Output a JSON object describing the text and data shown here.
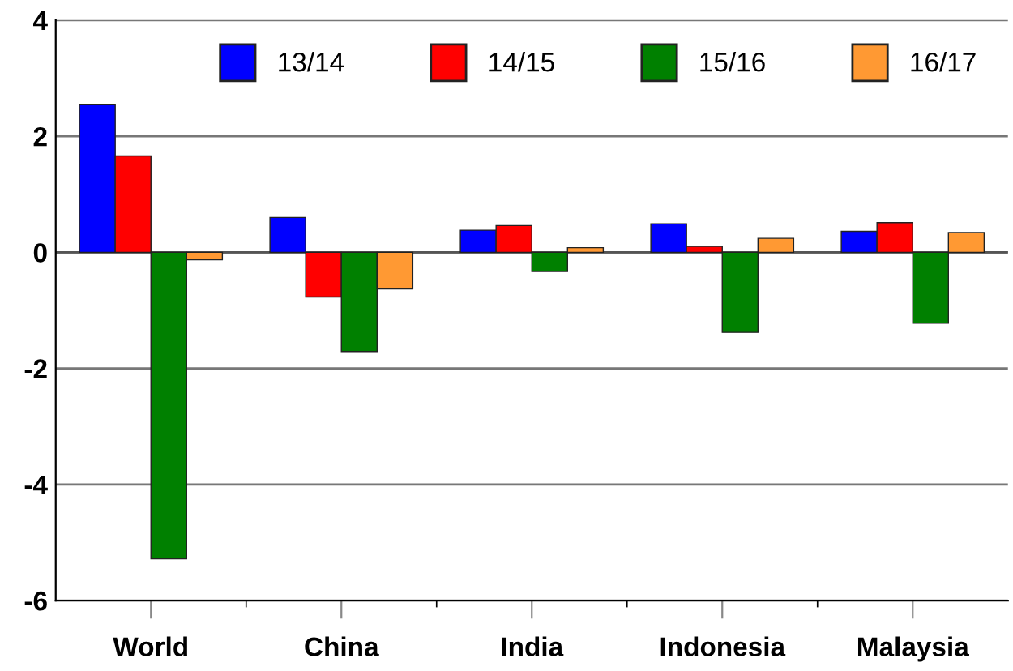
{
  "chart_data": {
    "type": "bar",
    "categories": [
      "World",
      "China",
      "India",
      "Indonesia",
      "Malaysia"
    ],
    "series": [
      {
        "name": "13/14",
        "color": "#0000ff",
        "values": [
          2.55,
          0.6,
          0.38,
          0.49,
          0.36
        ]
      },
      {
        "name": "14/15",
        "color": "#ff0000",
        "values": [
          1.66,
          -0.77,
          0.46,
          0.1,
          0.51
        ]
      },
      {
        "name": "15/16",
        "color": "#008000",
        "values": [
          -5.28,
          -1.71,
          -0.33,
          -1.38,
          -1.22
        ]
      },
      {
        "name": "16/17",
        "color": "#ff9933",
        "values": [
          -0.13,
          -0.63,
          0.08,
          0.24,
          0.34
        ]
      }
    ],
    "ylim": [
      -6,
      4
    ],
    "yticks": [
      -6,
      -4,
      -2,
      0,
      2,
      4
    ],
    "grid": "y",
    "legend": "top"
  }
}
